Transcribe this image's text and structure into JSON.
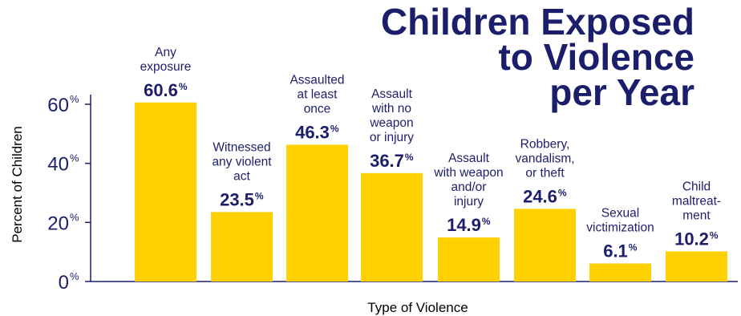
{
  "chart_data": {
    "type": "bar",
    "title_lines": [
      "Children Exposed",
      "to Violence",
      "per Year"
    ],
    "xlabel": "Type of Violence",
    "ylabel": "Percent of Children",
    "ylim": [
      0,
      60
    ],
    "yticks": [
      {
        "value": 0,
        "label": "0"
      },
      {
        "value": 20,
        "label": "20"
      },
      {
        "value": 40,
        "label": "40"
      },
      {
        "value": 60,
        "label": "60"
      }
    ],
    "tick_suffix": "%",
    "value_suffix": "%",
    "grid": false,
    "colors": {
      "bar": "#FFD100",
      "text": "#1B1F6B",
      "axis": "#1B1F6B"
    },
    "categories": [
      {
        "label_lines": [
          "Any",
          "exposure"
        ],
        "value": 60.6,
        "value_label": "60.6"
      },
      {
        "label_lines": [
          "Witnessed",
          "any violent",
          "act"
        ],
        "value": 23.5,
        "value_label": "23.5"
      },
      {
        "label_lines": [
          "Assaulted",
          "at least",
          "once"
        ],
        "value": 46.3,
        "value_label": "46.3"
      },
      {
        "label_lines": [
          "Assault",
          "with no",
          "weapon",
          "or injury"
        ],
        "value": 36.7,
        "value_label": "36.7"
      },
      {
        "label_lines": [
          "Assault",
          "with weapon",
          "and/or",
          "injury"
        ],
        "value": 14.9,
        "value_label": "14.9"
      },
      {
        "label_lines": [
          "Robbery,",
          "vandalism,",
          "or theft"
        ],
        "value": 24.6,
        "value_label": "24.6"
      },
      {
        "label_lines": [
          "Sexual",
          "victimization"
        ],
        "value": 6.1,
        "value_label": "6.1"
      },
      {
        "label_lines": [
          "Child",
          "maltreat-",
          "ment"
        ],
        "value": 10.2,
        "value_label": "10.2"
      }
    ]
  }
}
